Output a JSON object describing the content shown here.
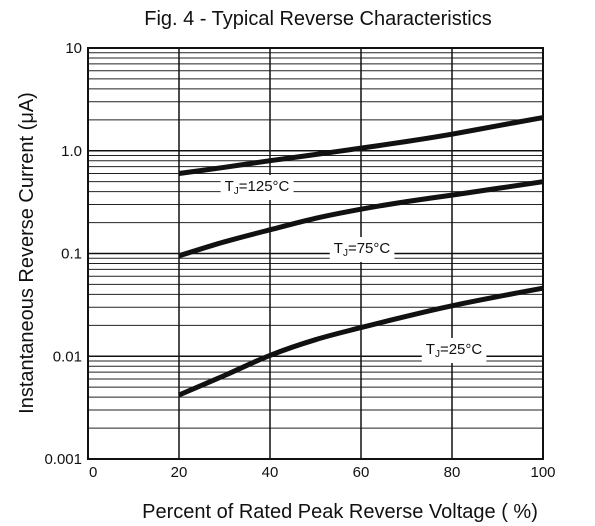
{
  "chart_data": {
    "type": "line",
    "title": "Fig. 4 - Typical Reverse Characteristics",
    "xlabel": "Percent of Rated Peak Reverse Voltage ( %)",
    "ylabel": "Instantaneous Reverse Current (μA)",
    "xlim": [
      0,
      100
    ],
    "ylim": [
      0.001,
      10
    ],
    "y_scale": "log",
    "grid": true,
    "x_ticks": [
      0,
      20,
      40,
      60,
      80,
      100
    ],
    "x_tick_labels": [
      "0",
      "20",
      "40",
      "60",
      "80",
      "100"
    ],
    "y_ticks": [
      0.001,
      0.01,
      0.1,
      1,
      10
    ],
    "y_tick_labels": [
      "0.001",
      "0.01",
      "0.1",
      "1.0",
      "10"
    ],
    "series": [
      {
        "label": "TJ=125°C",
        "label_main": "T",
        "label_sub": "J",
        "label_rest": "=125°C",
        "x": [
          20,
          30,
          40,
          50,
          60,
          70,
          80,
          90,
          100
        ],
        "y": [
          0.6,
          0.69,
          0.8,
          0.92,
          1.06,
          1.23,
          1.45,
          1.75,
          2.1
        ]
      },
      {
        "label": "TJ=75°C",
        "label_main": "T",
        "label_sub": "J",
        "label_rest": "=75°C",
        "x": [
          20,
          30,
          40,
          50,
          60,
          70,
          80,
          90,
          100
        ],
        "y": [
          0.095,
          0.13,
          0.17,
          0.22,
          0.27,
          0.32,
          0.37,
          0.43,
          0.5
        ]
      },
      {
        "label": "TJ=25°C",
        "label_main": "T",
        "label_sub": "J",
        "label_rest": "=25°C",
        "x": [
          20,
          30,
          40,
          50,
          60,
          70,
          80,
          90,
          100
        ],
        "y": [
          0.0042,
          0.0065,
          0.0102,
          0.0145,
          0.019,
          0.0245,
          0.031,
          0.038,
          0.046
        ]
      }
    ]
  }
}
